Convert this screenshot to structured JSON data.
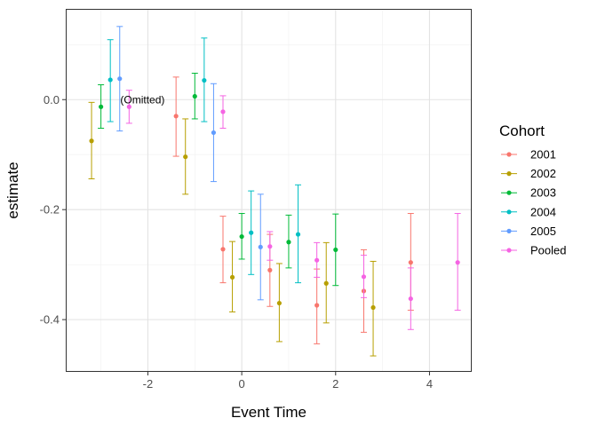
{
  "chart_data": {
    "type": "scatter",
    "title": "",
    "xlabel": "Event Time",
    "ylabel": "estimate",
    "xlim": [
      -3.75,
      4.9
    ],
    "ylim": [
      -0.495,
      0.165
    ],
    "x_ticks": [
      -2,
      0,
      2,
      4
    ],
    "x_minor_ticks": [
      -3,
      -1,
      1,
      3
    ],
    "y_ticks": [
      0.0,
      -0.2,
      -0.4
    ],
    "y_minor_ticks": [
      0.1,
      -0.1,
      -0.3
    ],
    "x_tick_labels": [
      "-2",
      "0",
      "2",
      "4"
    ],
    "y_tick_labels": [
      "0.0",
      "-0.2",
      "-0.4"
    ],
    "grid": true,
    "legend": {
      "title": "Cohort",
      "position": "right",
      "entries": [
        "2001",
        "2002",
        "2003",
        "2004",
        "2005",
        "Pooled"
      ]
    },
    "annotation": {
      "text": "(Omitted)",
      "x": -2.55,
      "y": 0.0
    },
    "series": [
      {
        "name": "2001",
        "color": "#F8766D",
        "points": [
          {
            "x": -1.4,
            "y": -0.03,
            "lo": -0.103,
            "hi": 0.041
          },
          {
            "x": -0.4,
            "y": -0.272,
            "lo": -0.333,
            "hi": -0.212
          },
          {
            "x": 0.6,
            "y": -0.31,
            "lo": -0.376,
            "hi": -0.245
          },
          {
            "x": 1.6,
            "y": -0.374,
            "lo": -0.444,
            "hi": -0.308
          },
          {
            "x": 2.6,
            "y": -0.348,
            "lo": -0.423,
            "hi": -0.273
          },
          {
            "x": 3.6,
            "y": -0.296,
            "lo": -0.383,
            "hi": -0.207
          }
        ]
      },
      {
        "name": "2002",
        "color": "#B79F00",
        "points": [
          {
            "x": -3.2,
            "y": -0.075,
            "lo": -0.144,
            "hi": -0.005
          },
          {
            "x": -1.2,
            "y": -0.104,
            "lo": -0.172,
            "hi": -0.035
          },
          {
            "x": -0.2,
            "y": -0.323,
            "lo": -0.386,
            "hi": -0.258
          },
          {
            "x": 0.8,
            "y": -0.37,
            "lo": -0.44,
            "hi": -0.298
          },
          {
            "x": 1.8,
            "y": -0.334,
            "lo": -0.406,
            "hi": -0.26
          },
          {
            "x": 2.8,
            "y": -0.378,
            "lo": -0.466,
            "hi": -0.294
          }
        ]
      },
      {
        "name": "2003",
        "color": "#00BA38",
        "points": [
          {
            "x": -3.0,
            "y": -0.013,
            "lo": -0.052,
            "hi": 0.027
          },
          {
            "x": -1.0,
            "y": 0.006,
            "lo": -0.035,
            "hi": 0.048
          },
          {
            "x": 0.0,
            "y": -0.249,
            "lo": -0.29,
            "hi": -0.207
          },
          {
            "x": 1.0,
            "y": -0.259,
            "lo": -0.306,
            "hi": -0.21
          },
          {
            "x": 2.0,
            "y": -0.273,
            "lo": -0.338,
            "hi": -0.208
          }
        ]
      },
      {
        "name": "2004",
        "color": "#00BFC4",
        "points": [
          {
            "x": -2.8,
            "y": 0.036,
            "lo": -0.04,
            "hi": 0.109
          },
          {
            "x": -0.8,
            "y": 0.035,
            "lo": -0.04,
            "hi": 0.112
          },
          {
            "x": 0.2,
            "y": -0.242,
            "lo": -0.318,
            "hi": -0.166
          },
          {
            "x": 1.2,
            "y": -0.245,
            "lo": -0.333,
            "hi": -0.155
          }
        ]
      },
      {
        "name": "2005",
        "color": "#619CFF",
        "points": [
          {
            "x": -2.6,
            "y": 0.038,
            "lo": -0.057,
            "hi": 0.133
          },
          {
            "x": -0.6,
            "y": -0.06,
            "lo": -0.149,
            "hi": 0.029
          },
          {
            "x": 0.4,
            "y": -0.268,
            "lo": -0.364,
            "hi": -0.172
          }
        ]
      },
      {
        "name": "Pooled",
        "color": "#F564E3",
        "points": [
          {
            "x": -2.4,
            "y": -0.013,
            "lo": -0.043,
            "hi": 0.017
          },
          {
            "x": -0.4,
            "y": -0.022,
            "lo": -0.052,
            "hi": 0.007
          },
          {
            "x": 0.6,
            "y": -0.267,
            "lo": -0.292,
            "hi": -0.24
          },
          {
            "x": 1.6,
            "y": -0.292,
            "lo": -0.323,
            "hi": -0.26
          },
          {
            "x": 2.6,
            "y": -0.322,
            "lo": -0.36,
            "hi": -0.283
          },
          {
            "x": 3.6,
            "y": -0.362,
            "lo": -0.418,
            "hi": -0.306
          },
          {
            "x": 4.6,
            "y": -0.296,
            "lo": -0.383,
            "hi": -0.207
          }
        ]
      }
    ]
  }
}
